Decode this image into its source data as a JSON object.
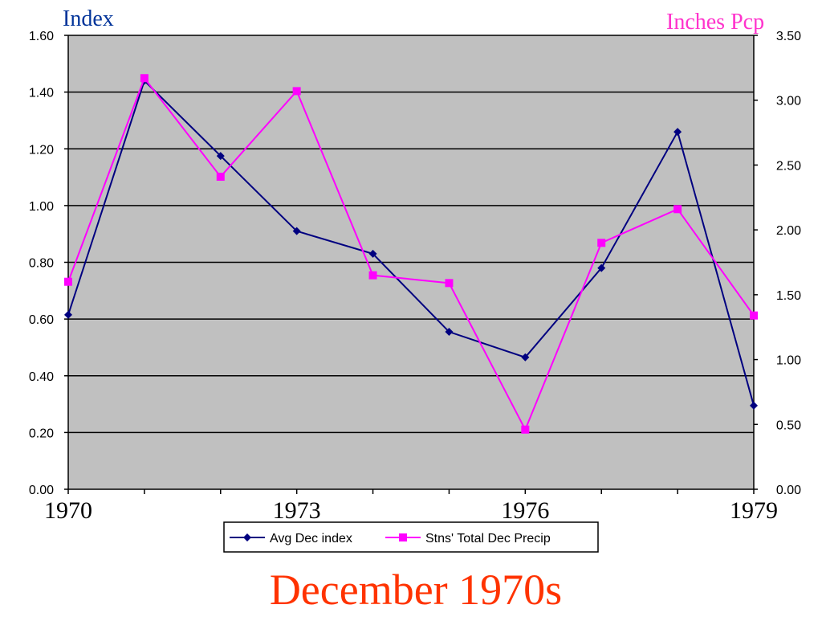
{
  "colors": {
    "plot_bg": "#C0C0C0",
    "index_series": "#000080",
    "precip_series": "#FF00FF",
    "title": "#FF3300",
    "left_label": "#003399",
    "right_label": "#FF33CC"
  },
  "chart_data": {
    "type": "line",
    "title": "December 1970s",
    "ylabel_left": "Index",
    "ylabel_right": "Inches Pcp",
    "x": [
      1970,
      1971,
      1972,
      1973,
      1974,
      1975,
      1976,
      1977,
      1978,
      1979
    ],
    "x_tick_labels": [
      "1970",
      "1973",
      "1976",
      "1979"
    ],
    "y_left_ticks": [
      "0.00",
      "0.20",
      "0.40",
      "0.60",
      "0.80",
      "1.00",
      "1.20",
      "1.40",
      "1.60"
    ],
    "y_right_ticks": [
      "0.00",
      "0.50",
      "1.00",
      "1.50",
      "2.00",
      "2.50",
      "3.00",
      "3.50"
    ],
    "ylim_left": [
      0,
      1.6
    ],
    "ylim_right": [
      0,
      3.5
    ],
    "grid": true,
    "legend_position": "bottom",
    "series": [
      {
        "name": "Avg Dec index",
        "axis": "left",
        "marker": "diamond",
        "values": [
          0.615,
          1.44,
          1.175,
          0.91,
          0.83,
          0.555,
          0.465,
          0.78,
          1.26,
          0.295
        ]
      },
      {
        "name": "Stns' Total Dec Precip",
        "axis": "right",
        "marker": "square",
        "values": [
          1.6,
          3.17,
          2.41,
          3.07,
          1.65,
          1.59,
          0.46,
          1.9,
          2.16,
          1.34
        ]
      }
    ]
  }
}
